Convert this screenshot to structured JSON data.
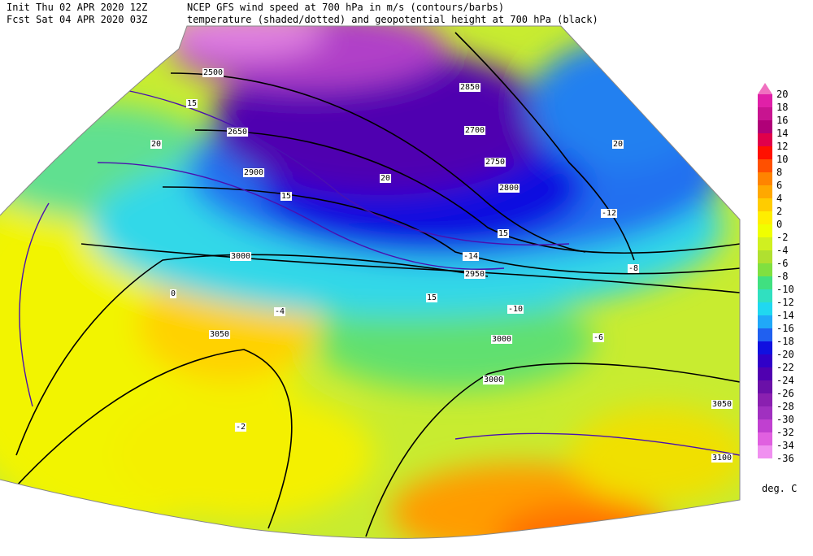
{
  "header": {
    "init": "Init  Thu 02 APR 2020 12Z",
    "fcst": "Fcst Sat 04 APR 2020 03Z",
    "line1": "NCEP GFS wind speed at 700 hPa in m/s (contours/barbs)",
    "line2": "temperature (shaded/dotted) and geopotential height at 700 hPa (black)"
  },
  "colorbar": {
    "ticks": [
      20,
      18,
      16,
      14,
      12,
      10,
      8,
      6,
      4,
      2,
      0,
      -2,
      -4,
      -6,
      -8,
      -10,
      -12,
      -14,
      -16,
      -18,
      -20,
      -22,
      -24,
      -26,
      -28,
      -30,
      -32,
      -34,
      -36
    ],
    "over_color": "#f070c0",
    "colors": [
      "#e020a8",
      "#c81490",
      "#b00078",
      "#e0004a",
      "#ff1000",
      "#ff5000",
      "#ff8400",
      "#ffa800",
      "#ffcc00",
      "#ffee00",
      "#f0ff00",
      "#d0f020",
      "#b0e030",
      "#80e040",
      "#40e080",
      "#30e0c0",
      "#20d8f0",
      "#20a8f8",
      "#2060f0",
      "#1010e0",
      "#3000c8",
      "#5000b0",
      "#6a10a8",
      "#8a20b0",
      "#a030c0",
      "#c040d0",
      "#e060e0",
      "#f090f0"
    ],
    "unit": "deg. C"
  },
  "map_labels": [
    "2500",
    "2650",
    "2700",
    "2750",
    "2800",
    "2850",
    "2900",
    "2950",
    "3000",
    "3000",
    "3050",
    "3000",
    "3100",
    "3050",
    "15",
    "20",
    "15",
    "20",
    "15",
    "15",
    "20",
    "-4",
    "-6",
    "-8",
    "-10",
    "-12",
    "-14",
    "0",
    "-2"
  ]
}
